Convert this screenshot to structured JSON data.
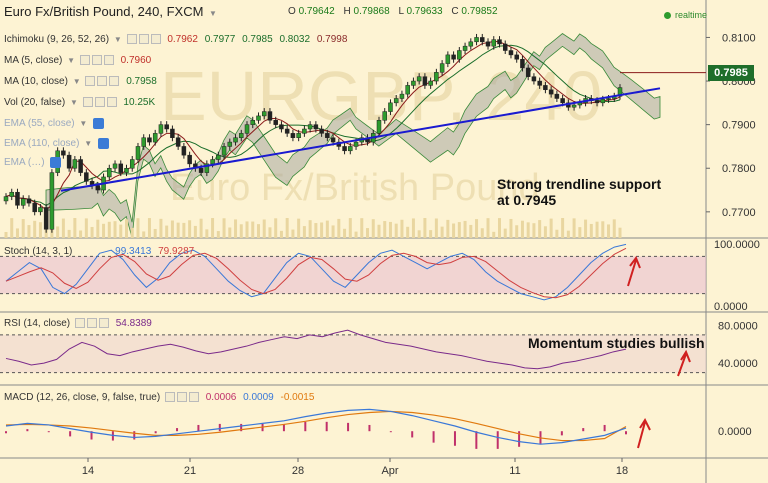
{
  "header": {
    "title": "Euro Fx/British Pound, 240, FXCM",
    "ohlc": [
      {
        "k": "O",
        "v": "0.79642"
      },
      {
        "k": "H",
        "v": "0.79868"
      },
      {
        "k": "L",
        "v": "0.79633"
      },
      {
        "k": "C",
        "v": "0.79852"
      }
    ],
    "realtime": "realtime"
  },
  "indicators": {
    "ichimoku": {
      "label": "Ichimoku (9, 26, 52, 26)",
      "values": [
        "0.7962",
        "0.7977",
        "0.7985",
        "0.8032",
        "0.7998"
      ]
    },
    "ma5": {
      "label": "MA (5, close)",
      "value": "0.7960"
    },
    "ma10": {
      "label": "MA (10, close)",
      "value": "0.7958"
    },
    "vol": {
      "label": "Vol (20, false)",
      "value": "10.25K"
    },
    "ema55": {
      "label": "EMA (55, close)"
    },
    "ema110": {
      "label": "EMA (110, close)"
    },
    "extra": {
      "label": "EMA (…)"
    }
  },
  "panes": {
    "stoch": {
      "label": "Stoch (14, 3, 1)",
      "v1": "99.3413",
      "v2": "79.9287"
    },
    "rsi": {
      "label": "RSI (14, close)",
      "value": "54.8389"
    },
    "macd": {
      "label": "MACD (12, 26, close, 9, false, true)",
      "v1": "0.0006",
      "v2": "0.0009",
      "v3": "-0.0015"
    }
  },
  "current_price": "0.7985",
  "annotations": {
    "trend_line1": "Strong trendline support",
    "trend_line2": "at 0.7945",
    "momentum": "Momentum studies bullish"
  },
  "colors": {
    "background": "#fdf3d3",
    "trendline": "#1a1ad0",
    "price_badge": "#1f6e2b",
    "stoch_k": "#3a78d8",
    "stoch_d": "#d04040",
    "rsi": "#7a2a8a",
    "macd": "#3a78d8",
    "signal": "#e07a10",
    "histogram": "#c0306a",
    "cloud": "#a8a8a0"
  },
  "chart_data": [
    {
      "type": "candlestick",
      "title": "Euro Fx/British Pound, 240, FXCM",
      "x_ticks": [
        "14",
        "21",
        "28",
        "Apr",
        "11",
        "18"
      ],
      "y_ticks": [
        "0.8100",
        "0.8000",
        "0.7900",
        "0.7800",
        "0.7700"
      ],
      "ylim": [
        0.764,
        0.814
      ],
      "close": [
        0.7735,
        0.7745,
        0.7715,
        0.773,
        0.772,
        0.77,
        0.771,
        0.766,
        0.779,
        0.784,
        0.783,
        0.78,
        0.782,
        0.779,
        0.777,
        0.776,
        0.775,
        0.778,
        0.78,
        0.781,
        0.779,
        0.78,
        0.782,
        0.785,
        0.787,
        0.786,
        0.788,
        0.79,
        0.789,
        0.787,
        0.785,
        0.783,
        0.781,
        0.78,
        0.779,
        0.781,
        0.782,
        0.783,
        0.785,
        0.786,
        0.787,
        0.788,
        0.79,
        0.791,
        0.792,
        0.793,
        0.791,
        0.79,
        0.789,
        0.788,
        0.787,
        0.788,
        0.789,
        0.79,
        0.789,
        0.788,
        0.787,
        0.786,
        0.785,
        0.784,
        0.785,
        0.786,
        0.787,
        0.786,
        0.788,
        0.791,
        0.793,
        0.795,
        0.796,
        0.797,
        0.799,
        0.8,
        0.801,
        0.799,
        0.8,
        0.802,
        0.804,
        0.806,
        0.805,
        0.807,
        0.808,
        0.809,
        0.81,
        0.809,
        0.808,
        0.8095,
        0.8085,
        0.807,
        0.806,
        0.805,
        0.803,
        0.801,
        0.8,
        0.799,
        0.798,
        0.797,
        0.796,
        0.795,
        0.794,
        0.7945,
        0.795,
        0.796,
        0.7955,
        0.795,
        0.7958,
        0.796,
        0.7965,
        0.7985
      ],
      "trendline": {
        "from": [
          0,
          0.773
        ],
        "to": [
          107,
          0.7965
        ],
        "support_level": 0.7945
      },
      "last_price": 0.7985
    },
    {
      "type": "line",
      "title": "Stoch (14, 3, 1)",
      "y_ticks": [
        "100.0000",
        "0.0000"
      ],
      "ylim": [
        0,
        100
      ],
      "levels": [
        80,
        20
      ],
      "series": [
        {
          "name": "%K",
          "last": 99.3413
        },
        {
          "name": "%D",
          "last": 79.9287
        }
      ],
      "k": [
        40,
        55,
        70,
        60,
        30,
        20,
        35,
        60,
        85,
        90,
        75,
        50,
        30,
        45,
        70,
        85,
        90,
        80,
        60,
        40,
        25,
        15,
        20,
        45,
        70,
        85,
        80,
        60,
        40,
        30,
        50,
        70,
        85,
        90,
        80,
        70,
        60,
        70,
        80,
        85,
        75,
        55,
        40,
        30,
        20,
        15,
        10,
        15,
        30,
        50,
        70,
        85,
        95,
        99.3413
      ]
    },
    {
      "type": "line",
      "title": "RSI (14, close)",
      "y_ticks": [
        "80.0000",
        "40.0000"
      ],
      "ylim": [
        20,
        90
      ],
      "levels": [
        70,
        30
      ],
      "series": [
        {
          "name": "RSI",
          "last": 54.8389
        }
      ],
      "values": [
        45,
        42,
        38,
        40,
        44,
        55,
        62,
        58,
        50,
        48,
        52,
        55,
        58,
        60,
        57,
        53,
        50,
        52,
        55,
        58,
        62,
        65,
        68,
        66,
        70,
        68,
        72,
        75,
        70,
        66,
        62,
        60,
        58,
        55,
        52,
        50,
        48,
        45,
        42,
        40,
        38,
        35,
        34,
        36,
        40,
        42,
        45,
        48,
        52,
        54.8389
      ]
    },
    {
      "type": "line",
      "title": "MACD (12, 26, close, 9, false, true)",
      "y_ticks": [
        "0.0000"
      ],
      "ylim": [
        -0.004,
        0.006
      ],
      "series": [
        {
          "name": "MACD",
          "last": 0.0006
        },
        {
          "name": "Signal",
          "last": 0.0009
        },
        {
          "name": "Histogram",
          "last": -0.0015
        }
      ],
      "macd": [
        0.001,
        0.0015,
        0.0012,
        0.0005,
        -0.0002,
        -0.0008,
        -0.0012,
        -0.001,
        -0.0005,
        0.0,
        0.0005,
        0.001,
        0.0015,
        0.002,
        0.0028,
        0.0035,
        0.004,
        0.0042,
        0.0038,
        0.003,
        0.002,
        0.001,
        -0.0002,
        -0.0012,
        -0.002,
        -0.0025,
        -0.0022,
        -0.0015,
        -0.0008,
        0.0006
      ],
      "signal": [
        0.0012,
        0.0013,
        0.0012,
        0.001,
        0.0006,
        0.0001,
        -0.0004,
        -0.0008,
        -0.0008,
        -0.0006,
        -0.0002,
        0.0003,
        0.0008,
        0.0013,
        0.0019,
        0.0026,
        0.0032,
        0.0036,
        0.0038,
        0.0036,
        0.0031,
        0.0024,
        0.0015,
        0.0005,
        -0.0005,
        -0.0013,
        -0.0018,
        -0.0018,
        -0.0014,
        0.0009
      ]
    }
  ]
}
